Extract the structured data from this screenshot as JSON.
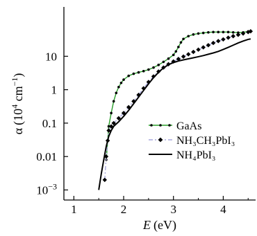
{
  "chart_data": {
    "type": "line",
    "xlabel": "E",
    "xlabel_unit": "(eV)",
    "ylabel": "α",
    "ylabel_unit_open": "(10",
    "ylabel_unit_exp": "4",
    "ylabel_unit_close": " cm",
    "ylabel_unit_exp2": "−1",
    "ylabel_unit_end": ")",
    "xlim": [
      0.8,
      4.65
    ],
    "ylim_log": [
      0.0005,
      300
    ],
    "y_scale": "log",
    "grid": false,
    "legend_position": "center-right",
    "xticks": [
      {
        "value": 1,
        "label": "1"
      },
      {
        "value": 2,
        "label": "2"
      },
      {
        "value": 3,
        "label": "3"
      },
      {
        "value": 4,
        "label": "4"
      }
    ],
    "yticks": [
      {
        "value": 0.001,
        "base": "10",
        "exp": "−3"
      },
      {
        "value": 0.01,
        "base": "0.01",
        "exp": ""
      },
      {
        "value": 0.1,
        "base": "0.1",
        "exp": ""
      },
      {
        "value": 1,
        "base": "1",
        "exp": ""
      },
      {
        "value": 10,
        "base": "10",
        "exp": ""
      }
    ],
    "series": [
      {
        "name": "GaAs",
        "color": "#2a9d2a",
        "marker": "dot",
        "dash": "",
        "points": [
          [
            1.65,
            0.008
          ],
          [
            1.68,
            0.03
          ],
          [
            1.7,
            0.08
          ],
          [
            1.75,
            0.2
          ],
          [
            1.8,
            0.45
          ],
          [
            1.85,
            0.8
          ],
          [
            1.9,
            1.2
          ],
          [
            1.95,
            1.6
          ],
          [
            2.0,
            2.0
          ],
          [
            2.1,
            2.6
          ],
          [
            2.2,
            3.0
          ],
          [
            2.3,
            3.3
          ],
          [
            2.4,
            3.6
          ],
          [
            2.5,
            4.0
          ],
          [
            2.6,
            4.6
          ],
          [
            2.7,
            5.5
          ],
          [
            2.8,
            6.8
          ],
          [
            2.9,
            8.5
          ],
          [
            3.0,
            11
          ],
          [
            3.05,
            14
          ],
          [
            3.1,
            19
          ],
          [
            3.15,
            26
          ],
          [
            3.2,
            33
          ],
          [
            3.3,
            40
          ],
          [
            3.4,
            45
          ],
          [
            3.5,
            48
          ],
          [
            3.6,
            50
          ],
          [
            3.7,
            52
          ],
          [
            3.8,
            53
          ],
          [
            3.9,
            53
          ],
          [
            4.0,
            53
          ],
          [
            4.1,
            53
          ],
          [
            4.2,
            52
          ],
          [
            4.3,
            51
          ],
          [
            4.4,
            52
          ],
          [
            4.5,
            55
          ]
        ]
      },
      {
        "name": "NH₃CH₃PbI₃",
        "color": "#a9a9dd",
        "marker": "diamond",
        "dash": "6,3,2,3",
        "points": [
          [
            1.62,
            0.002
          ],
          [
            1.65,
            0.01
          ],
          [
            1.68,
            0.03
          ],
          [
            1.7,
            0.06
          ],
          [
            1.75,
            0.08
          ],
          [
            1.8,
            0.1
          ],
          [
            1.9,
            0.14
          ],
          [
            2.0,
            0.2
          ],
          [
            2.1,
            0.3
          ],
          [
            2.2,
            0.45
          ],
          [
            2.3,
            0.7
          ],
          [
            2.4,
            1.1
          ],
          [
            2.5,
            1.7
          ],
          [
            2.6,
            2.5
          ],
          [
            2.7,
            3.5
          ],
          [
            2.8,
            4.6
          ],
          [
            2.9,
            5.8
          ],
          [
            3.0,
            7.0
          ],
          [
            3.1,
            8.3
          ],
          [
            3.2,
            9.8
          ],
          [
            3.3,
            11.5
          ],
          [
            3.4,
            13.5
          ],
          [
            3.5,
            15.8
          ],
          [
            3.6,
            18.5
          ],
          [
            3.7,
            21.5
          ],
          [
            3.8,
            25
          ],
          [
            3.9,
            28.5
          ],
          [
            4.0,
            32
          ],
          [
            4.1,
            36
          ],
          [
            4.2,
            40
          ],
          [
            4.3,
            44
          ],
          [
            4.4,
            48
          ],
          [
            4.5,
            53
          ],
          [
            4.55,
            56
          ]
        ]
      },
      {
        "name": "NH₄PbI₃",
        "color": "#000000",
        "marker": "",
        "dash": "",
        "points": [
          [
            1.5,
            0.001
          ],
          [
            1.55,
            0.003
          ],
          [
            1.6,
            0.008
          ],
          [
            1.65,
            0.02
          ],
          [
            1.7,
            0.04
          ],
          [
            1.75,
            0.06
          ],
          [
            1.8,
            0.08
          ],
          [
            1.9,
            0.11
          ],
          [
            2.0,
            0.16
          ],
          [
            2.1,
            0.24
          ],
          [
            2.2,
            0.38
          ],
          [
            2.3,
            0.6
          ],
          [
            2.4,
            0.95
          ],
          [
            2.5,
            1.5
          ],
          [
            2.6,
            2.3
          ],
          [
            2.7,
            3.3
          ],
          [
            2.8,
            4.5
          ],
          [
            2.9,
            5.6
          ],
          [
            3.0,
            6.5
          ],
          [
            3.1,
            7.2
          ],
          [
            3.2,
            7.8
          ],
          [
            3.3,
            8.4
          ],
          [
            3.4,
            9.0
          ],
          [
            3.5,
            9.7
          ],
          [
            3.6,
            10.5
          ],
          [
            3.7,
            11.5
          ],
          [
            3.8,
            12.6
          ],
          [
            3.9,
            14
          ],
          [
            4.0,
            16
          ],
          [
            4.1,
            18.5
          ],
          [
            4.2,
            21.5
          ],
          [
            4.3,
            25
          ],
          [
            4.4,
            28.5
          ],
          [
            4.5,
            32
          ],
          [
            4.55,
            33
          ]
        ]
      }
    ]
  }
}
